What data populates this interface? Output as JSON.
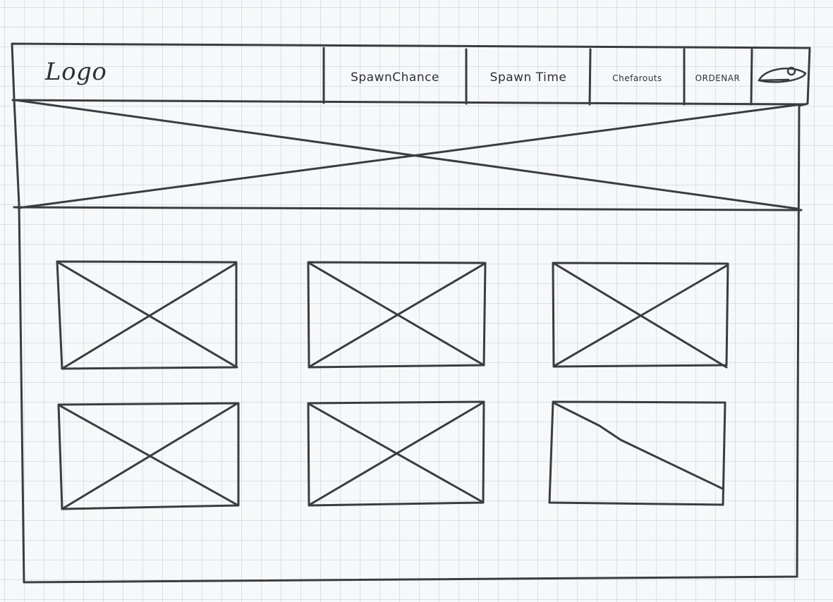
{
  "header": {
    "logo_text": "Logo",
    "nav_items": [
      {
        "label": "SpawnChance"
      },
      {
        "label": "Spawn Time"
      },
      {
        "label": "Chefarouts"
      },
      {
        "label": "ORDENAR"
      }
    ],
    "search_icon": "search-icon"
  },
  "hero": {
    "placeholder_type": "image-placeholder"
  },
  "grid": {
    "items": [
      {
        "placeholder_type": "image-placeholder"
      },
      {
        "placeholder_type": "image-placeholder"
      },
      {
        "placeholder_type": "image-placeholder"
      },
      {
        "placeholder_type": "image-placeholder"
      },
      {
        "placeholder_type": "image-placeholder"
      },
      {
        "placeholder_type": "image-placeholder"
      }
    ]
  },
  "colors": {
    "ink": "#3b3c3e",
    "paper": "#f7f8f9",
    "grid_lines": "#aab4c8"
  }
}
